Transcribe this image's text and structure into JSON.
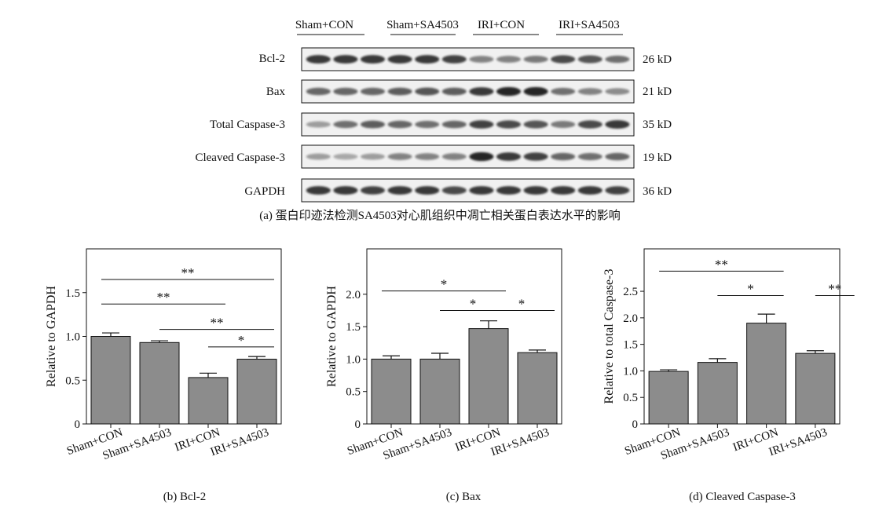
{
  "blot_panel": {
    "group_labels": [
      "Sham+CON",
      "Sham+SA4503",
      "IRI+CON",
      "IRI+SA4503"
    ],
    "rows": [
      {
        "name": "Bcl-2",
        "size": "26 kD",
        "lanes": [
          0.85,
          0.85,
          0.85,
          0.85,
          0.85,
          0.8,
          0.45,
          0.45,
          0.5,
          0.75,
          0.7,
          0.55
        ]
      },
      {
        "name": "Bax",
        "size": "21 kD",
        "lanes": [
          0.6,
          0.6,
          0.6,
          0.65,
          0.7,
          0.65,
          0.85,
          0.95,
          0.95,
          0.55,
          0.45,
          0.4
        ]
      },
      {
        "name": "Total Caspase-3",
        "size": "35 kD",
        "lanes": [
          0.3,
          0.55,
          0.65,
          0.6,
          0.55,
          0.6,
          0.8,
          0.75,
          0.7,
          0.5,
          0.75,
          0.85
        ]
      },
      {
        "name": "Cleaved Caspase-3",
        "size": "19 kD",
        "lanes": [
          0.3,
          0.25,
          0.3,
          0.45,
          0.45,
          0.45,
          0.95,
          0.85,
          0.8,
          0.6,
          0.55,
          0.6
        ]
      },
      {
        "name": "GAPDH",
        "size": "36 kD",
        "lanes": [
          0.85,
          0.85,
          0.8,
          0.85,
          0.85,
          0.75,
          0.85,
          0.85,
          0.85,
          0.85,
          0.85,
          0.8
        ]
      }
    ],
    "caption": "(a) 蛋白印迹法检测SA4503对心肌组织中凋亡相关蛋白表达水平的影响"
  },
  "colors": {
    "bar": "#8c8c8c",
    "axis": "#111111",
    "band": "#141414"
  },
  "chart_data": [
    {
      "type": "bar",
      "caption": "(b) Bcl-2",
      "ylabel": "Relative to GAPDH",
      "categories": [
        "Sham+CON",
        "Sham+SA4503",
        "IRI+CON",
        "IRI+SA4503"
      ],
      "values": [
        1.0,
        0.93,
        0.53,
        0.74
      ],
      "errors": [
        0.04,
        0.02,
        0.05,
        0.03
      ],
      "ylim": [
        0,
        2.0
      ],
      "yticks": [
        "0",
        "0.5",
        "1.0",
        "1.5"
      ],
      "significance": [
        {
          "from": 0,
          "to": 3,
          "y": 1.65,
          "label": "**"
        },
        {
          "from": 0,
          "to": 2,
          "y": 1.37,
          "label": "**"
        },
        {
          "from": 1,
          "to": 3,
          "y": 1.08,
          "label": "**"
        },
        {
          "from": 2,
          "to": 3,
          "y": 0.88,
          "label": "*"
        }
      ]
    },
    {
      "type": "bar",
      "caption": "(c) Bax",
      "ylabel": "Relative to GAPDH",
      "categories": [
        "Sham+CON",
        "Sham+SA4503",
        "IRI+CON",
        "IRI+SA4503"
      ],
      "values": [
        1.0,
        1.0,
        1.47,
        1.1
      ],
      "errors": [
        0.05,
        0.09,
        0.12,
        0.04
      ],
      "ylim": [
        0,
        2.7
      ],
      "yticks": [
        "0",
        "0.5",
        "1.0",
        "1.5",
        "2.0"
      ],
      "significance": [
        {
          "from": 0,
          "to": 2,
          "y": 2.05,
          "label": "*"
        },
        {
          "from": 1,
          "to": 2,
          "y": 1.75,
          "label": "*"
        },
        {
          "from": 2,
          "to": 3,
          "y": 1.75,
          "label": "*"
        }
      ]
    },
    {
      "type": "bar",
      "caption": "(d) Cleaved Caspase-3",
      "ylabel": "Relative to total Caspase-3",
      "categories": [
        "Sham+CON",
        "Sham+SA4503",
        "IRI+CON",
        "IRI+SA4503"
      ],
      "values": [
        0.99,
        1.16,
        1.9,
        1.33
      ],
      "errors": [
        0.03,
        0.07,
        0.17,
        0.05
      ],
      "ylim": [
        0,
        3.3
      ],
      "yticks": [
        "0",
        "0.5",
        "1.0",
        "1.5",
        "2.0",
        "2.5"
      ],
      "significance": [
        {
          "from": 0,
          "to": 2,
          "y": 2.88,
          "label": "**"
        },
        {
          "from": 1,
          "to": 2,
          "y": 2.42,
          "label": "*"
        },
        {
          "from": 3,
          "to": 3.8,
          "y": 2.42,
          "label": "**"
        }
      ]
    }
  ]
}
